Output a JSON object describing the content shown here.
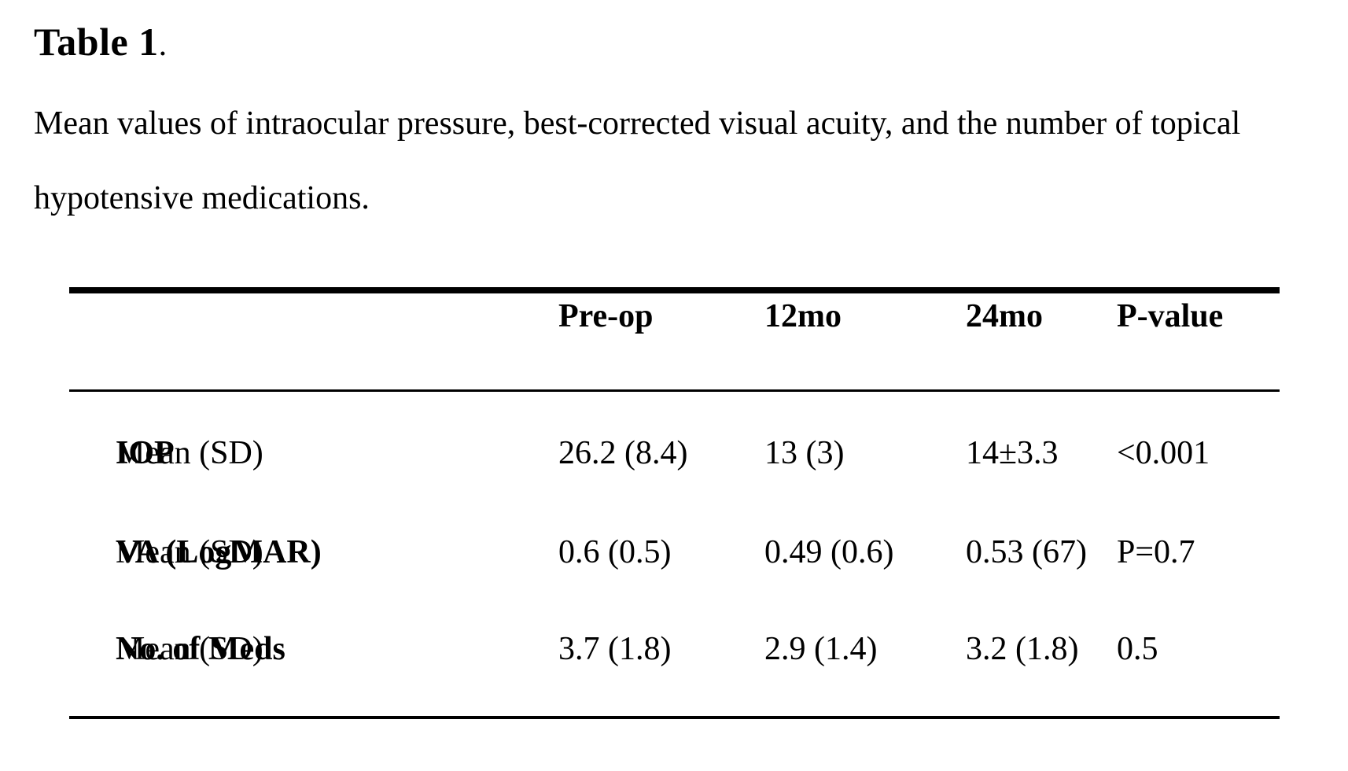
{
  "document": {
    "title": "Table 1",
    "title_period": ".",
    "caption_line1": "Mean values of intraocular pressure, best-corrected visual acuity, and the number of topical",
    "caption_line2": "hypotensive medications."
  },
  "table": {
    "header": {
      "label": "",
      "preop": "Pre-op",
      "mo12": "12mo",
      "mo24": "24mo",
      "pvalue": "P-value"
    },
    "rows": [
      {
        "label_bold": "IOP",
        "label_rest": " Mean (SD)",
        "preop": "26.2 (8.4)",
        "mo12": "13 (3)",
        "mo24": "14±3.3",
        "pvalue": "<0.001"
      },
      {
        "label_bold": "VA (LogMAR)",
        "label_rest": " Mean (SD)",
        "preop": "0.6 (0.5)",
        "mo12": "0.49 (0.6)",
        "mo24": "0.53 (67)",
        "pvalue": "P=0.7"
      },
      {
        "label_bold": "No. of Meds",
        "label_rest": " Mean (SD)",
        "preop": "3.7 (1.8)",
        "mo12": "2.9 (1.4)",
        "mo24": "3.2 (1.8)",
        "pvalue": "0.5"
      }
    ]
  },
  "chart_data": {
    "type": "table",
    "title": "Table 1. Mean values of intraocular pressure, best-corrected visual acuity, and the number of topical hypotensive medications.",
    "columns": [
      "",
      "Pre-op",
      "12mo",
      "24mo",
      "P-value"
    ],
    "rows": [
      [
        "IOP Mean (SD)",
        "26.2 (8.4)",
        "13 (3)",
        "14±3.3",
        "<0.001"
      ],
      [
        "VA (LogMAR) Mean (SD)",
        "0.6 (0.5)",
        "0.49 (0.6)",
        "0.53 (67)",
        "P=0.7"
      ],
      [
        "No. of Meds Mean (SD)",
        "3.7 (1.8)",
        "2.9 (1.4)",
        "3.2 (1.8)",
        "0.5"
      ]
    ]
  },
  "colors": {
    "text": "#000000",
    "background": "#ffffff"
  }
}
